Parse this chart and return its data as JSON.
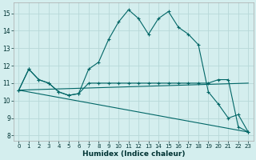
{
  "bg_color": "#d4eeee",
  "grid_color": "#b8d8d8",
  "line_color": "#006666",
  "xlabel": "Humidex (Indice chaleur)",
  "xlim": [
    -0.5,
    23.5
  ],
  "ylim": [
    7.7,
    15.6
  ],
  "yticks": [
    8,
    9,
    10,
    11,
    12,
    13,
    14,
    15
  ],
  "xticks": [
    0,
    1,
    2,
    3,
    4,
    5,
    6,
    7,
    8,
    9,
    10,
    11,
    12,
    13,
    14,
    15,
    16,
    17,
    18,
    19,
    20,
    21,
    22,
    23
  ],
  "line1_x": [
    0,
    1,
    2,
    3,
    4,
    5,
    6,
    7,
    8,
    9,
    10,
    11,
    12,
    13,
    14,
    15,
    16,
    17,
    18,
    19,
    20,
    21,
    22,
    23
  ],
  "line1_y": [
    10.6,
    11.8,
    11.2,
    11.0,
    10.5,
    10.3,
    10.4,
    11.8,
    12.2,
    13.5,
    14.5,
    15.2,
    14.7,
    13.8,
    14.7,
    15.1,
    14.2,
    13.8,
    13.2,
    10.5,
    9.8,
    9.0,
    9.2,
    8.2
  ],
  "line2_x": [
    0,
    1,
    2,
    3,
    4,
    5,
    6,
    7,
    8,
    9,
    10,
    11,
    12,
    13,
    14,
    15,
    16,
    17,
    18,
    19,
    20,
    21,
    22,
    23
  ],
  "line2_y": [
    10.6,
    11.8,
    11.2,
    11.0,
    10.5,
    10.3,
    10.4,
    11.0,
    11.0,
    11.0,
    11.0,
    11.0,
    11.0,
    11.0,
    11.0,
    11.0,
    11.0,
    11.0,
    11.0,
    11.0,
    11.2,
    11.2,
    8.5,
    8.2
  ],
  "line3_x": [
    0,
    23
  ],
  "line3_y": [
    10.6,
    8.2
  ],
  "line4_x": [
    0,
    23
  ],
  "line4_y": [
    10.6,
    11.0
  ]
}
